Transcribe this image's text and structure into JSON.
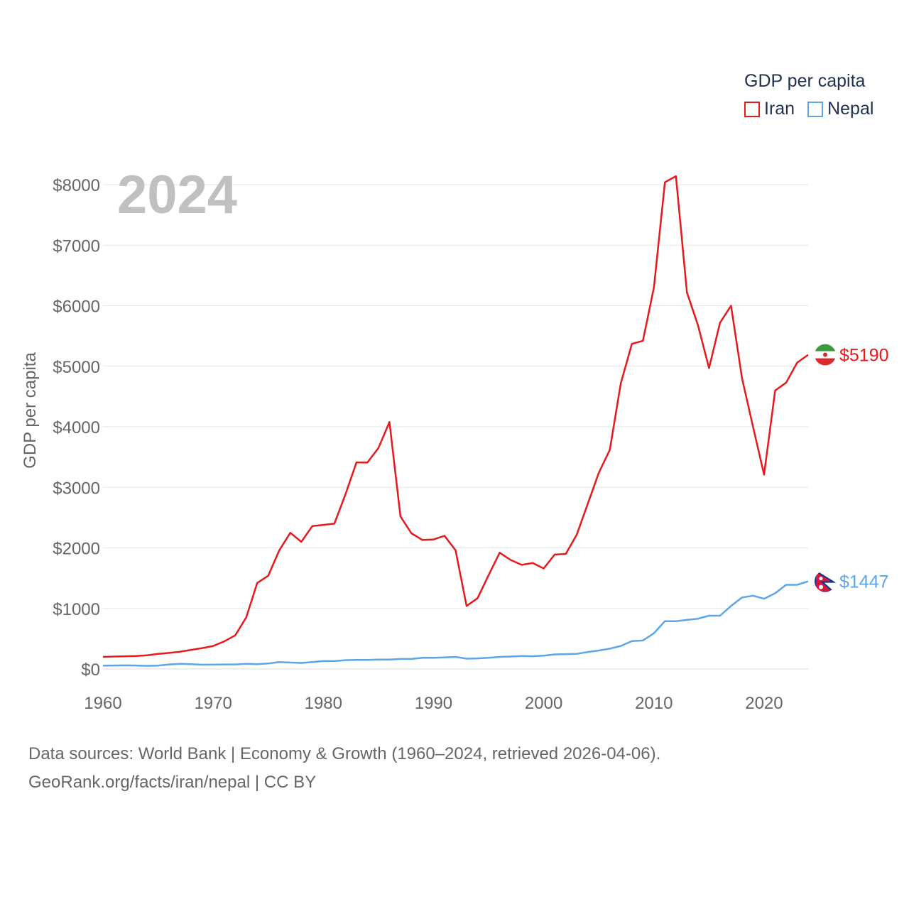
{
  "legend": {
    "title": "GDP per capita",
    "items": [
      {
        "name": "Iran",
        "color": "#e8191b"
      },
      {
        "name": "Nepal",
        "color": "#5da5e6"
      }
    ]
  },
  "source": {
    "line1": "Data sources: World Bank | Economy & Growth (1960–2024, retrieved 2026-04-06).",
    "line2": "GeoRank.org/facts/iran/nepal | CC BY"
  },
  "chart_data": {
    "type": "line",
    "year_label": "2024",
    "ylabel": "GDP per capita",
    "ylim": [
      0,
      8000
    ],
    "xlim": [
      1960,
      2024
    ],
    "y_ticks": [
      0,
      1000,
      2000,
      3000,
      4000,
      5000,
      6000,
      7000,
      8000
    ],
    "y_tick_labels": [
      "$0",
      "$1000",
      "$2000",
      "$3000",
      "$4000",
      "$5000",
      "$6000",
      "$7000",
      "$8000"
    ],
    "x_ticks": [
      1960,
      1970,
      1980,
      1990,
      2000,
      2010,
      2020
    ],
    "x_tick_labels": [
      "1960",
      "1970",
      "1980",
      "1990",
      "2000",
      "2010",
      "2020"
    ],
    "grid": true,
    "x": [
      1960,
      1961,
      1962,
      1963,
      1964,
      1965,
      1966,
      1967,
      1968,
      1969,
      1970,
      1971,
      1972,
      1973,
      1974,
      1975,
      1976,
      1977,
      1978,
      1979,
      1980,
      1981,
      1982,
      1983,
      1984,
      1985,
      1986,
      1987,
      1988,
      1989,
      1990,
      1991,
      1992,
      1993,
      1994,
      1995,
      1996,
      1997,
      1998,
      1999,
      2000,
      2001,
      2002,
      2003,
      2004,
      2005,
      2006,
      2007,
      2008,
      2009,
      2010,
      2011,
      2012,
      2013,
      2014,
      2015,
      2016,
      2017,
      2018,
      2019,
      2020,
      2021,
      2022,
      2023,
      2024
    ],
    "series": [
      {
        "name": "Iran",
        "color": "#e8191b",
        "end_label": "$5190",
        "values": [
          200,
          205,
          210,
          215,
          225,
          250,
          265,
          285,
          315,
          345,
          380,
          455,
          555,
          850,
          1420,
          1540,
          1960,
          2250,
          2100,
          2360,
          2380,
          2400,
          2880,
          3410,
          3410,
          3650,
          4080,
          2520,
          2240,
          2130,
          2140,
          2200,
          1960,
          1040,
          1170,
          1550,
          1920,
          1800,
          1720,
          1750,
          1660,
          1890,
          1900,
          2220,
          2730,
          3240,
          3620,
          4720,
          5370,
          5420,
          6300,
          8040,
          8140,
          6220,
          5680,
          4970,
          5720,
          6000,
          4800,
          4000,
          3210,
          4600,
          4730,
          5060,
          5190
        ]
      },
      {
        "name": "Nepal",
        "color": "#5da5e6",
        "end_label": "$1447",
        "values": [
          55,
          58,
          60,
          58,
          52,
          55,
          75,
          85,
          80,
          70,
          72,
          75,
          75,
          85,
          80,
          90,
          115,
          105,
          100,
          115,
          130,
          130,
          145,
          150,
          150,
          155,
          155,
          165,
          165,
          185,
          185,
          190,
          200,
          170,
          175,
          185,
          200,
          205,
          215,
          210,
          220,
          240,
          245,
          250,
          280,
          305,
          335,
          380,
          460,
          470,
          590,
          790,
          790,
          810,
          830,
          880,
          880,
          1040,
          1180,
          1210,
          1160,
          1250,
          1390,
          1390,
          1447
        ]
      }
    ]
  }
}
